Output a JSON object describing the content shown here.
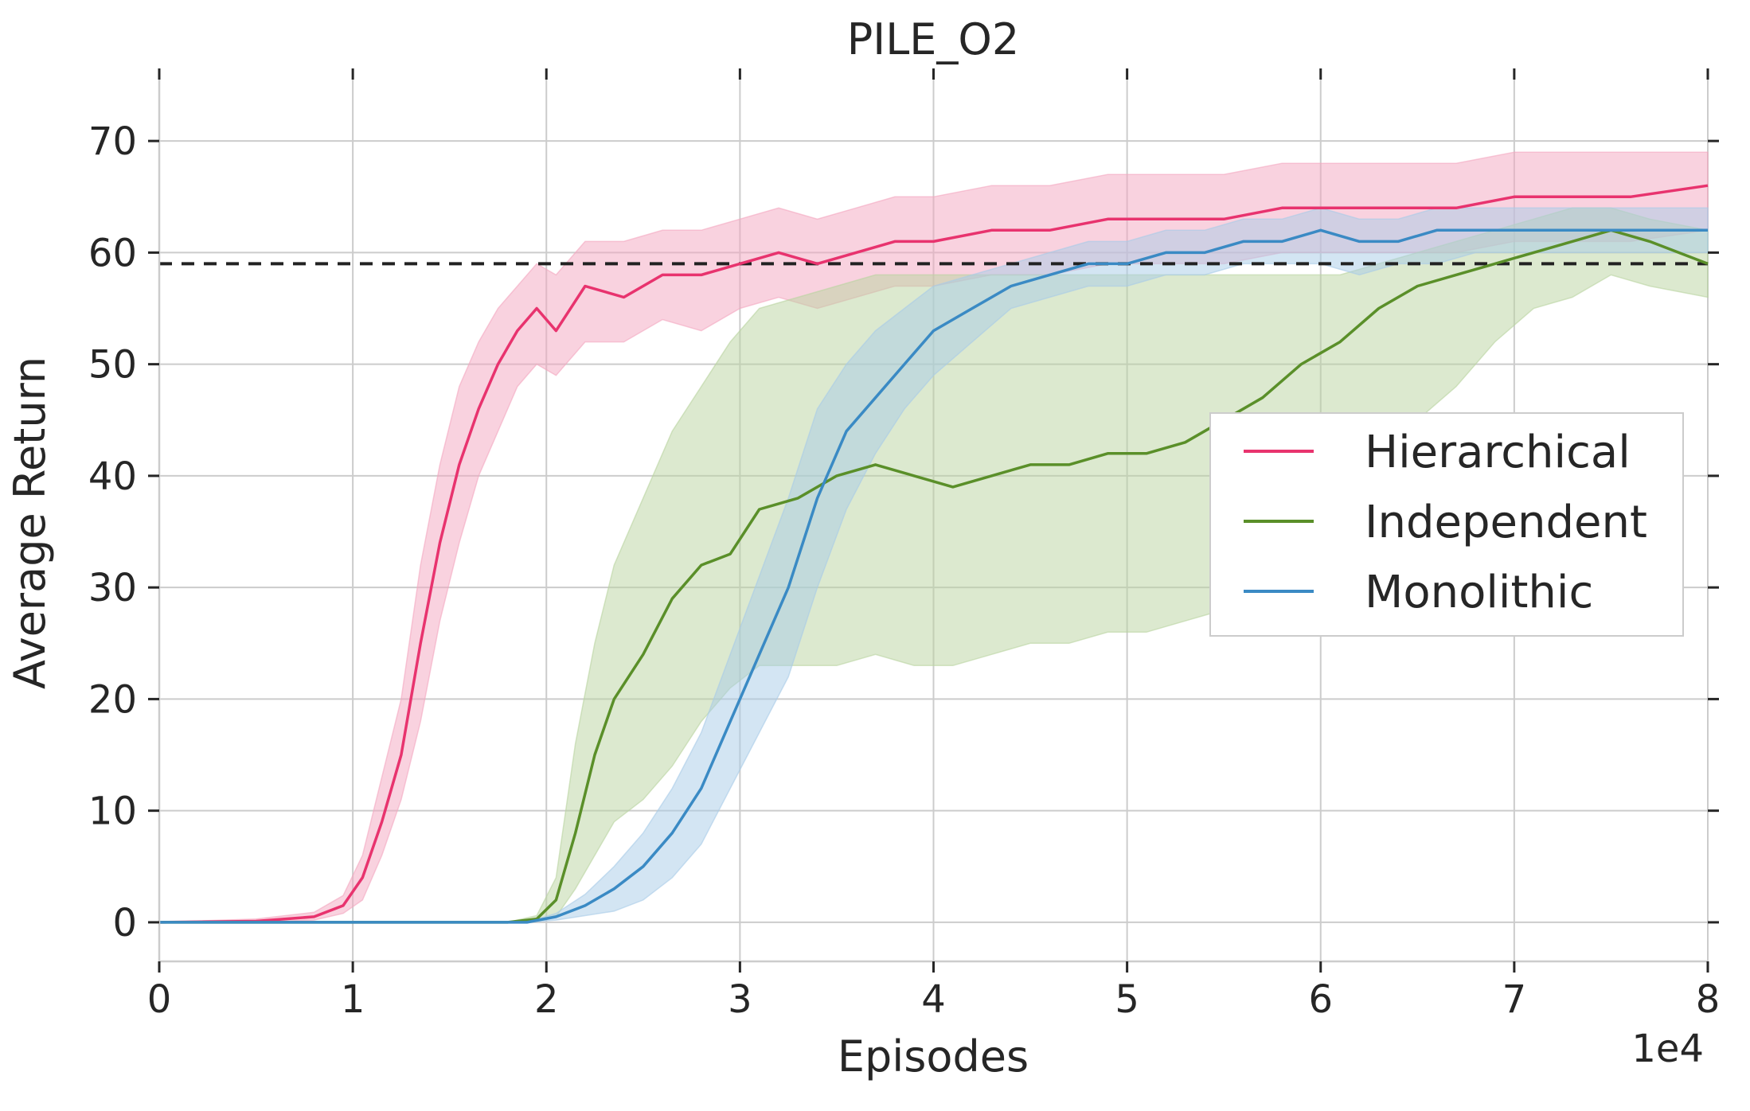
{
  "chart_data": {
    "type": "line",
    "title": "PILE_O2",
    "xlabel": "Episodes",
    "ylabel": "Average Return",
    "x_offset_label": "1e4",
    "xlim": [
      0,
      8
    ],
    "ylim": [
      -3.5,
      75.5
    ],
    "x_ticks": [
      0,
      1,
      2,
      3,
      4,
      5,
      6,
      7,
      8
    ],
    "x_tick_labels": [
      "0",
      "1",
      "2",
      "3",
      "4",
      "5",
      "6",
      "7",
      "8"
    ],
    "y_ticks": [
      0,
      10,
      20,
      30,
      40,
      50,
      60,
      70
    ],
    "y_tick_labels": [
      "0",
      "10",
      "20",
      "30",
      "40",
      "50",
      "60",
      "70"
    ],
    "grid": true,
    "legend_position": "center-right",
    "reference_line": {
      "y": 59,
      "style": "dashed",
      "color": "#222222"
    },
    "series": [
      {
        "name": "Hierarchical",
        "color": "#e8336e",
        "fill_color": "#f4a6c0",
        "x": [
          0,
          0.5,
          0.8,
          0.95,
          1.05,
          1.15,
          1.25,
          1.35,
          1.45,
          1.55,
          1.65,
          1.75,
          1.85,
          1.95,
          2.05,
          2.2,
          2.4,
          2.6,
          2.8,
          3.0,
          3.2,
          3.4,
          3.6,
          3.8,
          4.0,
          4.3,
          4.6,
          4.9,
          5.2,
          5.5,
          5.8,
          6.1,
          6.4,
          6.7,
          7.0,
          7.3,
          7.6,
          8.0
        ],
        "mean": [
          0,
          0.1,
          0.5,
          1.5,
          4,
          9,
          15,
          25,
          34,
          41,
          46,
          50,
          53,
          55,
          53,
          57,
          56,
          58,
          58,
          59,
          60,
          59,
          60,
          61,
          61,
          62,
          62,
          63,
          63,
          63,
          64,
          64,
          64,
          64,
          65,
          65,
          65,
          66
        ],
        "lower": [
          0,
          0,
          0.2,
          0.8,
          2,
          6,
          11,
          18,
          27,
          34,
          40,
          44,
          48,
          50,
          49,
          52,
          52,
          54,
          53,
          55,
          56,
          55,
          56,
          57,
          57,
          58,
          58,
          59,
          59,
          59,
          60,
          60,
          60,
          60,
          61,
          61,
          61,
          62
        ],
        "upper": [
          0,
          0.3,
          0.9,
          2.4,
          6,
          13,
          20,
          32,
          41,
          48,
          52,
          55,
          57,
          59,
          58,
          61,
          61,
          62,
          62,
          63,
          64,
          63,
          64,
          65,
          65,
          66,
          66,
          67,
          67,
          67,
          68,
          68,
          68,
          68,
          69,
          69,
          69,
          69
        ]
      },
      {
        "name": "Independent",
        "color": "#5a8f29",
        "fill_color": "#b9d3a0",
        "x": [
          0,
          1.8,
          1.95,
          2.05,
          2.15,
          2.25,
          2.35,
          2.5,
          2.65,
          2.8,
          2.95,
          3.1,
          3.3,
          3.5,
          3.7,
          3.9,
          4.1,
          4.3,
          4.5,
          4.7,
          4.9,
          5.1,
          5.3,
          5.5,
          5.7,
          5.9,
          6.1,
          6.3,
          6.5,
          6.7,
          6.9,
          7.1,
          7.3,
          7.5,
          7.7,
          8.0
        ],
        "mean": [
          0,
          0,
          0.3,
          2,
          8,
          15,
          20,
          24,
          29,
          32,
          33,
          37,
          38,
          40,
          41,
          40,
          39,
          40,
          41,
          41,
          42,
          42,
          43,
          45,
          47,
          50,
          52,
          55,
          57,
          58,
          59,
          60,
          61,
          62,
          61,
          59
        ],
        "lower": [
          0,
          0,
          0.1,
          0.5,
          3,
          6,
          9,
          11,
          14,
          18,
          21,
          23,
          23,
          23,
          24,
          23,
          23,
          24,
          25,
          25,
          26,
          26,
          27,
          28,
          29,
          33,
          37,
          41,
          45,
          48,
          52,
          55,
          56,
          58,
          57,
          56
        ],
        "upper": [
          0,
          0,
          0.6,
          4,
          16,
          25,
          32,
          38,
          44,
          48,
          52,
          55,
          56,
          57,
          58,
          58,
          58,
          58,
          58,
          58,
          58,
          58,
          58,
          58,
          58,
          58,
          58,
          59,
          60,
          61,
          62,
          63,
          64,
          64,
          63,
          62
        ]
      },
      {
        "name": "Monolithic",
        "color": "#3a8ac4",
        "fill_color": "#a8cbe8",
        "x": [
          0,
          1.9,
          2.05,
          2.2,
          2.35,
          2.5,
          2.65,
          2.8,
          2.95,
          3.1,
          3.25,
          3.4,
          3.55,
          3.7,
          3.85,
          4.0,
          4.2,
          4.4,
          4.6,
          4.8,
          5.0,
          5.2,
          5.4,
          5.6,
          5.8,
          6.0,
          6.2,
          6.4,
          6.6,
          6.8,
          7.0,
          7.2,
          7.4,
          7.6,
          7.8,
          8.0
        ],
        "mean": [
          0,
          0,
          0.5,
          1.5,
          3,
          5,
          8,
          12,
          18,
          24,
          30,
          38,
          44,
          47,
          50,
          53,
          55,
          57,
          58,
          59,
          59,
          60,
          60,
          61,
          61,
          62,
          61,
          61,
          62,
          62,
          62,
          62,
          62,
          62,
          62,
          62
        ],
        "lower": [
          0,
          0,
          0.2,
          0.6,
          1,
          2,
          4,
          7,
          12,
          17,
          22,
          30,
          37,
          42,
          46,
          49,
          52,
          55,
          56,
          57,
          57,
          58,
          58,
          59,
          59,
          59,
          58,
          59,
          59,
          60,
          60,
          60,
          60,
          60,
          60,
          60
        ],
        "upper": [
          0,
          0,
          0.8,
          2.5,
          5,
          8,
          12,
          17,
          24,
          31,
          38,
          46,
          50,
          53,
          55,
          57,
          58,
          59,
          60,
          61,
          61,
          62,
          62,
          63,
          63,
          64,
          63,
          63,
          64,
          64,
          64,
          64,
          64,
          64,
          64,
          64
        ]
      }
    ]
  }
}
